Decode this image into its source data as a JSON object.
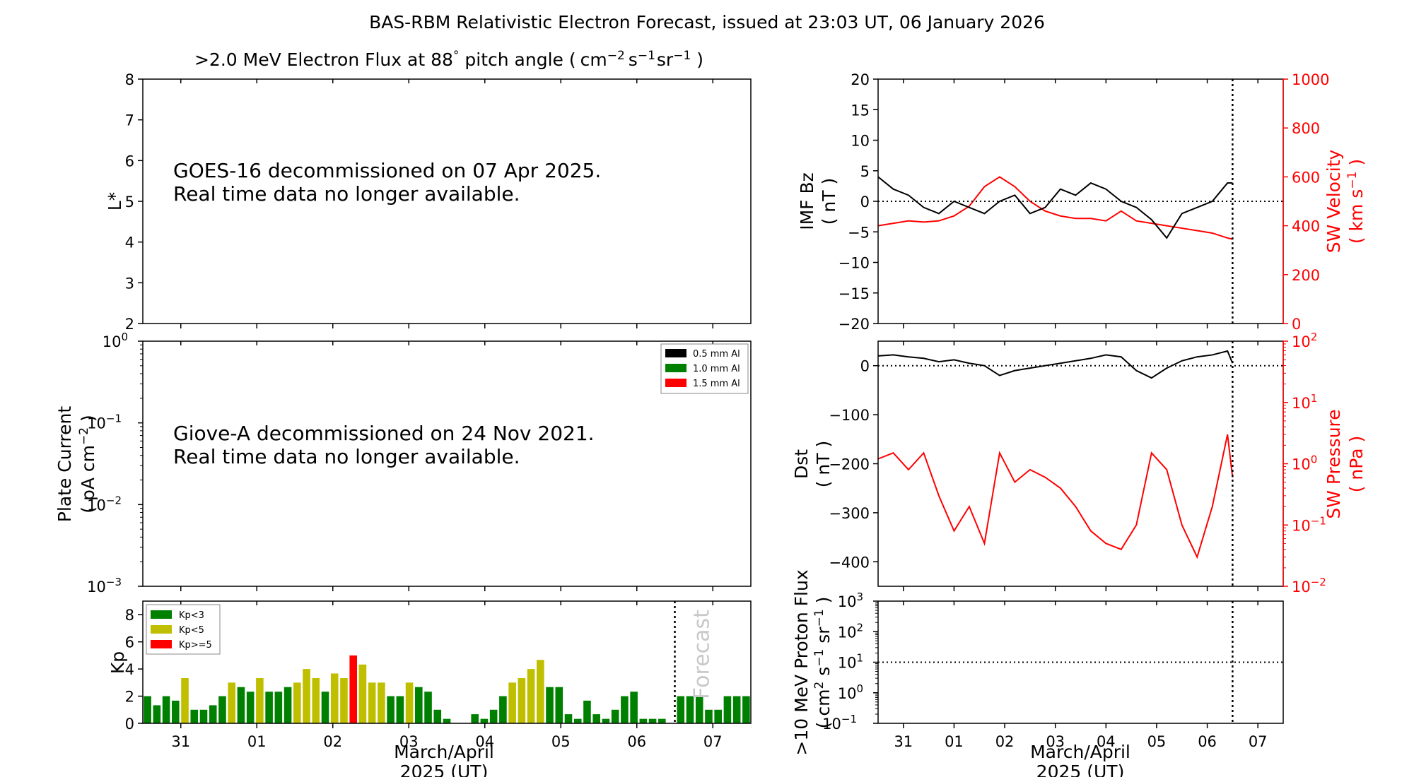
{
  "title": "BAS-RBM Relativistic Electron Forecast, issued at 23:03 UT, 06 January 2026",
  "colors": {
    "kp_low": "#008000",
    "kp_mid": "#bfbf00",
    "kp_high": "#ff0000",
    "sw": "#ff0000",
    "axis": "#000000"
  },
  "panels": {
    "flux": {
      "title_main": ">2.0 MeV Electron Flux at 88",
      "title_deg": "°",
      "title_tail": "pitch angle (",
      "title_unit": "cm",
      "title_e1": "−2",
      "title_s": "s",
      "title_e2": "−1",
      "title_sr": "sr",
      "title_e3": "−1",
      "title_close": ")",
      "ylabel": "L*",
      "message_line1": "GOES-16 decommissioned on 07 Apr 2025.",
      "message_line2": "Real time data no longer available."
    },
    "plate": {
      "ylabel_line1": "Plate Current",
      "ylabel_line2_a": "( pA cm",
      "ylabel_line2_exp": "−2",
      "ylabel_line2_b": " )",
      "message_line1": "Giove-A decommissioned on 24 Nov 2021.",
      "message_line2": "Real time data no longer available.",
      "legend": [
        "0.5 mm Al",
        "1.0 mm Al",
        "1.5 mm Al"
      ]
    },
    "kp": {
      "ylabel": "Kp",
      "legend": [
        "Kp<3",
        "Kp<5",
        "Kp>=5"
      ],
      "forecast_label": "Forecast",
      "xlabel_line1": "March/April",
      "xlabel_line2": "2025 (UT)"
    },
    "imf": {
      "ylabel_line1": "IMF Bz",
      "ylabel_line2": "( nT )",
      "ylabel_right_line1": "SW Velocity",
      "ylabel_right_line2_a": "( km s",
      "ylabel_right_line2_exp": "−1",
      "ylabel_right_line2_b": " )"
    },
    "dst": {
      "ylabel_line1": "Dst",
      "ylabel_line2": "( nT )",
      "ylabel_right_line1": "SW Pressure",
      "ylabel_right_line2": "( nPa )"
    },
    "proton": {
      "ylabel_line1": ">10 MeV Proton Flux",
      "ylabel_line2_a": "( cm",
      "ylabel_line2_e1": "2",
      "ylabel_line2_s": " s",
      "ylabel_line2_e2": "−1",
      "ylabel_line2_sr": " sr",
      "ylabel_line2_e3": "−1",
      "ylabel_line2_b": " )",
      "xlabel_line1": "March/April",
      "xlabel_line2": "2025 (UT)"
    }
  },
  "chart_data": [
    {
      "id": "flux",
      "type": "scatter",
      "title": ">2.0 MeV Electron Flux at 88° pitch angle ( cm−2 s−1 sr−1 )",
      "ylabel": "L*",
      "ylim": [
        2,
        8
      ],
      "yticks": [
        "2",
        "3",
        "4",
        "5",
        "6",
        "7",
        "8"
      ],
      "xlim": [
        0,
        8.0
      ],
      "series": []
    },
    {
      "id": "plate",
      "type": "line",
      "ylabel": "Plate Current ( pA cm−2 )",
      "yscale": "log",
      "ylim": [
        0.001,
        1
      ],
      "yticks": [
        "10",
        "10",
        "10",
        "10"
      ],
      "ytick_exps": [
        "−3",
        "−2",
        "−1",
        "0"
      ],
      "series": []
    },
    {
      "id": "kp",
      "type": "bar",
      "ylabel": "Kp",
      "ylim": [
        0,
        9
      ],
      "yticks": [
        "0",
        "2",
        "4",
        "6",
        "8"
      ],
      "xlim": [
        0,
        8.0
      ],
      "xtick_labels": [
        "31",
        "01",
        "02",
        "03",
        "04",
        "05",
        "06",
        "07"
      ],
      "xtick_pos": [
        0.5,
        1.5,
        2.5,
        3.5,
        4.5,
        5.5,
        6.5,
        7.5
      ],
      "forecast_x": 7.0,
      "bar_width": 0.1,
      "values": [
        2.0,
        1.33,
        2.0,
        1.67,
        3.33,
        1.0,
        1.0,
        1.33,
        2.0,
        3.0,
        2.67,
        2.33,
        3.33,
        2.33,
        2.33,
        2.67,
        3.0,
        4.0,
        3.33,
        2.33,
        3.67,
        3.33,
        5.0,
        4.33,
        3.0,
        3.0,
        2.0,
        2.0,
        3.0,
        2.67,
        2.33,
        1.0,
        0.33,
        0,
        0,
        0.67,
        0.33,
        1.0,
        2.0,
        3.0,
        3.33,
        4.0,
        4.67,
        2.67,
        2.67,
        0.67,
        0.33,
        1.67,
        0.67,
        0.33,
        1.0,
        2.0,
        2.33,
        0.33,
        0.33,
        0.33,
        0,
        2.0,
        2.0,
        2.0,
        1.0,
        1.0,
        2.0,
        2.0,
        2.0
      ],
      "thresholds": {
        "low": 3,
        "high": 5
      }
    },
    {
      "id": "imf",
      "type": "line",
      "ylabel": "IMF Bz ( nT )",
      "ylabel_right": "SW Velocity ( km s−1 )",
      "ylim": [
        -20,
        20
      ],
      "ylim_right": [
        0,
        1000
      ],
      "yticks": [
        "−20",
        "−15",
        "−10",
        "−5",
        "0",
        "5",
        "10",
        "15",
        "20"
      ],
      "yticks_right": [
        "0",
        "200",
        "400",
        "600",
        "800",
        "1000"
      ],
      "xlim": [
        0,
        8.0
      ],
      "xtick_labels": [
        "31",
        "01",
        "02",
        "03",
        "04",
        "05",
        "06",
        "07"
      ],
      "now_x": 7.0,
      "bz": [
        [
          0.0,
          4
        ],
        [
          0.3,
          2
        ],
        [
          0.6,
          1
        ],
        [
          0.9,
          -1
        ],
        [
          1.2,
          -2
        ],
        [
          1.5,
          0
        ],
        [
          1.8,
          -1
        ],
        [
          2.1,
          -2
        ],
        [
          2.4,
          0
        ],
        [
          2.7,
          1
        ],
        [
          3.0,
          -2
        ],
        [
          3.3,
          -1
        ],
        [
          3.6,
          2
        ],
        [
          3.9,
          1
        ],
        [
          4.2,
          3
        ],
        [
          4.5,
          2
        ],
        [
          4.8,
          0
        ],
        [
          5.1,
          -1
        ],
        [
          5.4,
          -3
        ],
        [
          5.7,
          -6
        ],
        [
          6.0,
          -2
        ],
        [
          6.3,
          -1
        ],
        [
          6.6,
          0
        ],
        [
          6.9,
          3
        ],
        [
          7.0,
          3
        ]
      ],
      "velocity": [
        [
          0.0,
          400
        ],
        [
          0.3,
          410
        ],
        [
          0.6,
          420
        ],
        [
          0.9,
          415
        ],
        [
          1.2,
          420
        ],
        [
          1.5,
          440
        ],
        [
          1.8,
          480
        ],
        [
          2.1,
          560
        ],
        [
          2.4,
          600
        ],
        [
          2.7,
          560
        ],
        [
          3.0,
          500
        ],
        [
          3.3,
          460
        ],
        [
          3.6,
          440
        ],
        [
          3.9,
          430
        ],
        [
          4.2,
          430
        ],
        [
          4.5,
          420
        ],
        [
          4.8,
          460
        ],
        [
          5.1,
          420
        ],
        [
          5.4,
          410
        ],
        [
          5.7,
          400
        ],
        [
          6.0,
          390
        ],
        [
          6.3,
          380
        ],
        [
          6.6,
          370
        ],
        [
          6.9,
          350
        ],
        [
          7.0,
          345
        ]
      ]
    },
    {
      "id": "dst",
      "type": "line",
      "ylabel": "Dst ( nT )",
      "ylabel_right": "SW Pressure ( nPa )",
      "ylim": [
        -450,
        50
      ],
      "yscale_right": "log",
      "ylim_right": [
        0.01,
        100
      ],
      "yticks": [
        "−400",
        "−300",
        "−200",
        "−100",
        "0"
      ],
      "yticks_right": [
        "10",
        "10",
        "10",
        "10",
        "10"
      ],
      "yticks_right_exps": [
        "−2",
        "−1",
        "0",
        "1",
        "2"
      ],
      "xlim": [
        0,
        8.0
      ],
      "now_x": 7.0,
      "dst": [
        [
          0.0,
          20
        ],
        [
          0.3,
          22
        ],
        [
          0.6,
          18
        ],
        [
          0.9,
          15
        ],
        [
          1.2,
          8
        ],
        [
          1.5,
          12
        ],
        [
          1.8,
          5
        ],
        [
          2.1,
          0
        ],
        [
          2.4,
          -20
        ],
        [
          2.7,
          -10
        ],
        [
          3.0,
          -5
        ],
        [
          3.3,
          0
        ],
        [
          3.6,
          5
        ],
        [
          3.9,
          10
        ],
        [
          4.2,
          15
        ],
        [
          4.5,
          22
        ],
        [
          4.8,
          18
        ],
        [
          5.1,
          -10
        ],
        [
          5.4,
          -25
        ],
        [
          5.7,
          -5
        ],
        [
          6.0,
          10
        ],
        [
          6.3,
          18
        ],
        [
          6.6,
          22
        ],
        [
          6.9,
          30
        ],
        [
          7.0,
          5
        ]
      ],
      "pressure": [
        [
          0.0,
          1.2
        ],
        [
          0.3,
          1.5
        ],
        [
          0.6,
          0.8
        ],
        [
          0.9,
          1.5
        ],
        [
          1.2,
          0.3
        ],
        [
          1.5,
          0.08
        ],
        [
          1.8,
          0.2
        ],
        [
          2.1,
          0.05
        ],
        [
          2.4,
          1.5
        ],
        [
          2.7,
          0.5
        ],
        [
          3.0,
          0.8
        ],
        [
          3.3,
          0.6
        ],
        [
          3.6,
          0.4
        ],
        [
          3.9,
          0.2
        ],
        [
          4.2,
          0.08
        ],
        [
          4.5,
          0.05
        ],
        [
          4.8,
          0.04
        ],
        [
          5.1,
          0.1
        ],
        [
          5.4,
          1.5
        ],
        [
          5.7,
          0.8
        ],
        [
          6.0,
          0.1
        ],
        [
          6.3,
          0.03
        ],
        [
          6.6,
          0.2
        ],
        [
          6.9,
          3.0
        ],
        [
          7.0,
          0.6
        ]
      ]
    },
    {
      "id": "proton",
      "type": "line",
      "ylabel": ">10 MeV Proton Flux ( cm2 s−1 sr−1 )",
      "yscale": "log",
      "ylim": [
        0.1,
        1000
      ],
      "yticks": [
        "10",
        "10",
        "10",
        "10",
        "10"
      ],
      "ytick_exps": [
        "−1",
        "0",
        "1",
        "2",
        "3"
      ],
      "threshold": 10,
      "xlim": [
        0,
        8.0
      ],
      "xtick_labels": [
        "31",
        "01",
        "02",
        "03",
        "04",
        "05",
        "06",
        "07"
      ],
      "now_x": 7.0,
      "series": []
    }
  ]
}
